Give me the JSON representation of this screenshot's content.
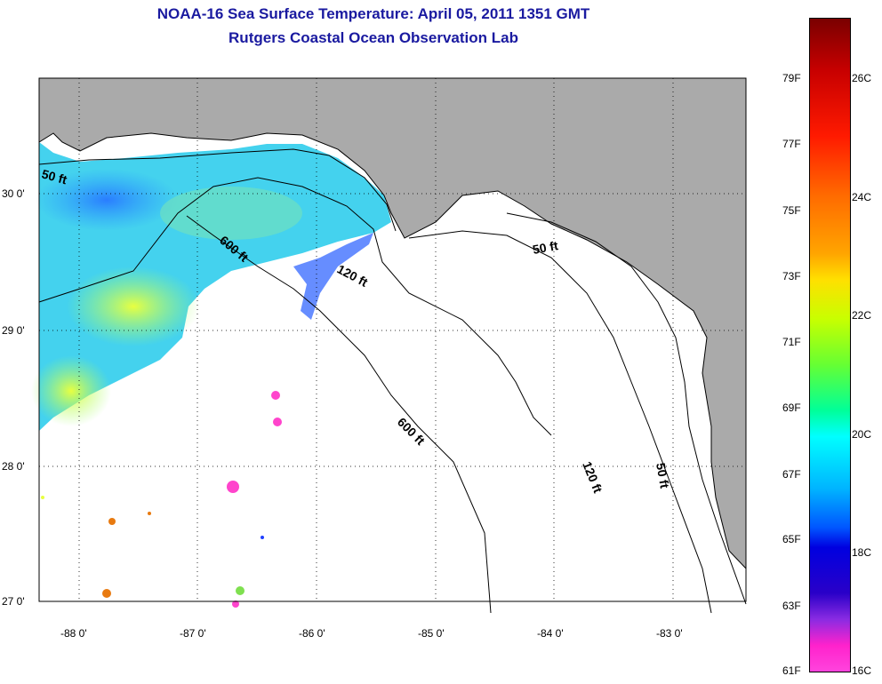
{
  "header": {
    "title": "NOAA-16 Sea Surface Temperature:  April 05, 2011 1351 GMT",
    "subtitle": "Rutgers Coastal Ocean Observation Lab"
  },
  "map": {
    "latitude_labels": [
      "30 0'",
      "29 0'",
      "28 0'",
      "27 0'"
    ],
    "longitude_labels": [
      "-88 0'",
      "-87 0'",
      "-86 0'",
      "-85 0'",
      "-84 0'",
      "-83 0'"
    ],
    "contour_labels": [
      "50 ft",
      "600 ft",
      "120 ft",
      "50 ft",
      "600 ft",
      "120 ft",
      "50 ft"
    ],
    "land_color": "#aaaaaa",
    "no_data_color": "#ffffff"
  },
  "colorbar": {
    "fahrenheit_labels": [
      "79F",
      "77F",
      "75F",
      "73F",
      "71F",
      "69F",
      "67F",
      "65F",
      "63F",
      "61F"
    ],
    "celsius_labels": [
      "26C",
      "24C",
      "22C",
      "20C",
      "18C",
      "16C"
    ]
  }
}
